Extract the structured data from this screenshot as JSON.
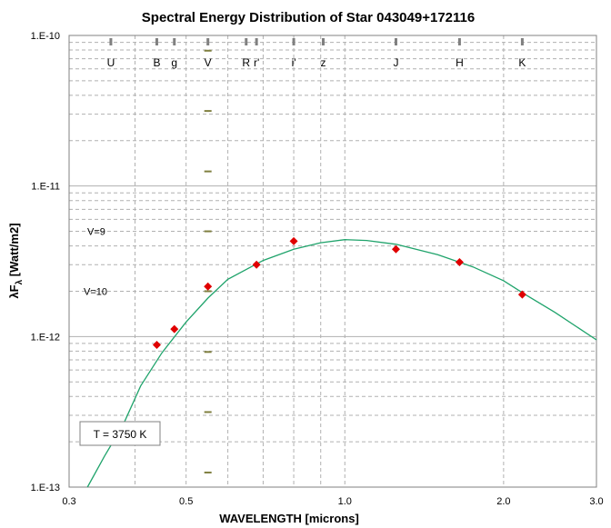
{
  "chart_data": {
    "type": "scatter",
    "title": "Spectral Energy Distribution of Star 043049+172116",
    "xlabel": "WAVELENGTH [microns]",
    "ylabel_main": "λF",
    "ylabel_sub": "λ",
    "ylabel_tail": " [Watt/m2]",
    "xscale": "log",
    "yscale": "log",
    "xlim": [
      0.3,
      3.0
    ],
    "ylim": [
      1e-13,
      1e-10
    ],
    "x_ticks": [
      {
        "value": 0.3,
        "label": "0.3"
      },
      {
        "value": 0.5,
        "label": "0.5"
      },
      {
        "value": 1.0,
        "label": "1.0"
      },
      {
        "value": 2.0,
        "label": "2.0"
      },
      {
        "value": 3.0,
        "label": "3.0"
      }
    ],
    "x_gridlines": [
      0.4,
      0.5,
      0.6,
      0.7,
      0.8,
      0.9,
      1.0,
      2.0
    ],
    "y_ticks": [
      {
        "value": 1e-10,
        "label": "1.E-10"
      },
      {
        "value": 1e-11,
        "label": "1.E-11"
      },
      {
        "value": 1e-12,
        "label": "1.E-12"
      },
      {
        "value": 1e-13,
        "label": "1.E-13"
      }
    ],
    "grid": true,
    "bands": [
      {
        "name": "U",
        "wavelength": 0.36
      },
      {
        "name": "B",
        "wavelength": 0.44
      },
      {
        "name": "g",
        "wavelength": 0.475
      },
      {
        "name": "V",
        "wavelength": 0.55
      },
      {
        "name": "R",
        "wavelength": 0.65
      },
      {
        "name": "r'",
        "wavelength": 0.68
      },
      {
        "name": "i'",
        "wavelength": 0.8
      },
      {
        "name": "z",
        "wavelength": 0.91
      },
      {
        "name": "J",
        "wavelength": 1.25
      },
      {
        "name": "H",
        "wavelength": 1.65
      },
      {
        "name": "K",
        "wavelength": 2.17
      }
    ],
    "v_magnitude_marks": [
      {
        "value": 7.92e-11
      },
      {
        "value": 3.15e-11
      },
      {
        "value": 1.25e-11
      },
      {
        "value": 5e-12,
        "label": "V=9"
      },
      {
        "value": 2e-12,
        "label": "V=10"
      },
      {
        "value": 7.9e-13
      },
      {
        "value": 3.15e-13
      },
      {
        "value": 1.25e-13
      }
    ],
    "points": [
      {
        "x": 0.44,
        "y": 8.8e-13
      },
      {
        "x": 0.475,
        "y": 1.12e-12
      },
      {
        "x": 0.55,
        "y": 2.15e-12
      },
      {
        "x": 0.68,
        "y": 3e-12
      },
      {
        "x": 0.8,
        "y": 4.3e-12
      },
      {
        "x": 1.25,
        "y": 3.8e-12
      },
      {
        "x": 1.65,
        "y": 3.12e-12
      },
      {
        "x": 2.17,
        "y": 1.9e-12
      }
    ],
    "model_curve": [
      {
        "x": 0.325,
        "y": 1e-13
      },
      {
        "x": 0.35,
        "y": 1.6e-13
      },
      {
        "x": 0.38,
        "y": 2.6e-13
      },
      {
        "x": 0.41,
        "y": 4.7e-13
      },
      {
        "x": 0.45,
        "y": 7.8e-13
      },
      {
        "x": 0.5,
        "y": 1.25e-12
      },
      {
        "x": 0.55,
        "y": 1.8e-12
      },
      {
        "x": 0.6,
        "y": 2.4e-12
      },
      {
        "x": 0.7,
        "y": 3.2e-12
      },
      {
        "x": 0.8,
        "y": 3.8e-12
      },
      {
        "x": 0.9,
        "y": 4.2e-12
      },
      {
        "x": 1.0,
        "y": 4.4e-12
      },
      {
        "x": 1.1,
        "y": 4.35e-12
      },
      {
        "x": 1.25,
        "y": 4.1e-12
      },
      {
        "x": 1.5,
        "y": 3.5e-12
      },
      {
        "x": 1.75,
        "y": 2.9e-12
      },
      {
        "x": 2.0,
        "y": 2.35e-12
      },
      {
        "x": 2.2,
        "y": 1.9e-12
      },
      {
        "x": 2.5,
        "y": 1.45e-12
      },
      {
        "x": 3.0,
        "y": 9.5e-13
      }
    ],
    "colors": {
      "points": "#e00000",
      "curve": "#1fa36b",
      "v_marks": "#7f7f3f",
      "band_ticks": "#808080",
      "grid": "#b0b0b0"
    },
    "annotation": "T = 3750  K"
  }
}
